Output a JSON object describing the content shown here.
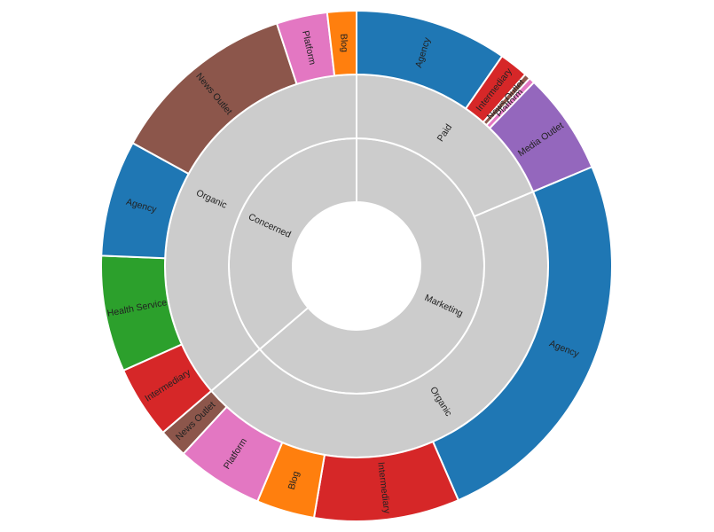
{
  "chart_data": {
    "type": "sunburst",
    "colors": {
      "group": "#cccccc",
      "stroke": "#ffffff",
      "Agency": "#1f77b4",
      "Blog": "#ff7f0e",
      "Health Service": "#2ca02c",
      "Intermediary": "#d62728",
      "Media Outlet": "#9467bd",
      "News Outlet": "#8c564b",
      "Platform": "#e377c2"
    },
    "root": {
      "children": [
        {
          "name": "Marketing",
          "children": [
            {
              "name": "Paid",
              "children": [
                {
                  "name": "Agency",
                  "value": 21
                },
                {
                  "name": "Intermediary",
                  "value": 4
                },
                {
                  "name": "News Outlet",
                  "value": 0.8
                },
                {
                  "name": "Platform",
                  "value": 0.8
                },
                {
                  "name": "Media Outlet",
                  "value": 14
                }
              ]
            },
            {
              "name": "Organic",
              "children": [
                {
                  "name": "Agency",
                  "value": 54
                },
                {
                  "name": "Intermediary",
                  "value": 20
                },
                {
                  "name": "Blog",
                  "value": 8
                },
                {
                  "name": "Platform",
                  "value": 12
                },
                {
                  "name": "News Outlet",
                  "value": 4
                }
              ]
            }
          ]
        },
        {
          "name": "Concerned",
          "children": [
            {
              "name": "Organic",
              "children": [
                {
                  "name": "Intermediary",
                  "value": 10
                },
                {
                  "name": "Health Service",
                  "value": 16
                },
                {
                  "name": "Agency",
                  "value": 16
                },
                {
                  "name": "News Outlet",
                  "value": 26
                },
                {
                  "name": "Platform",
                  "value": 7
                },
                {
                  "name": "Blog",
                  "value": 4
                }
              ]
            }
          ]
        }
      ]
    }
  }
}
